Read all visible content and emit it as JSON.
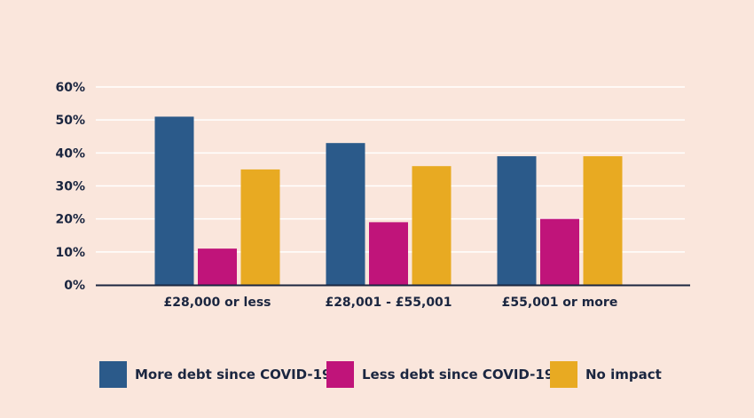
{
  "chart_data": {
    "type": "bar",
    "title": "",
    "xlabel": "",
    "ylabel": "",
    "categories": [
      "£28,000 or less",
      "£28,001 - £55,001",
      "£55,001 or more"
    ],
    "series": [
      {
        "name": "More debt since COVID-19",
        "color": "#2b5a8a",
        "values": [
          51,
          43,
          39
        ]
      },
      {
        "name": "Less debt since COVID-19",
        "color": "#c0147a",
        "values": [
          11,
          19,
          20
        ]
      },
      {
        "name": "No impact",
        "color": "#e8aa22",
        "values": [
          35,
          36,
          39
        ]
      }
    ],
    "ylim": [
      0,
      60
    ],
    "yticks": [
      0,
      10,
      20,
      30,
      40,
      50,
      60
    ],
    "ytick_labels": [
      "0%",
      "10%",
      "20%",
      "30%",
      "40%",
      "50%",
      "60%"
    ],
    "grid": true,
    "legend_position": "bottom",
    "colors": {
      "background": "#fae6dc",
      "gridline": "#ffffff",
      "axis": "#1b2640",
      "text": "#1b2640"
    }
  }
}
